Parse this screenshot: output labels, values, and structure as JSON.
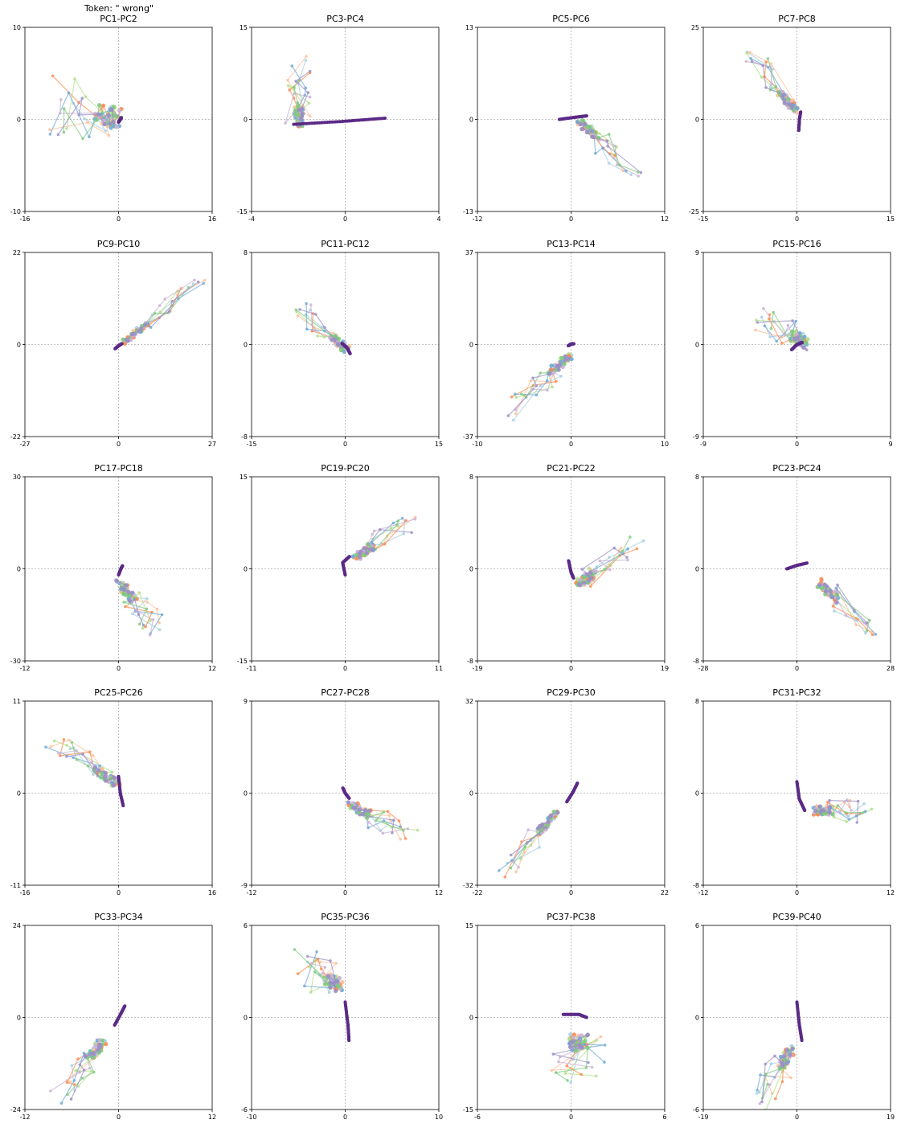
{
  "figure": {
    "token_label": "Token: \" wrong\""
  },
  "colors": {
    "series": [
      "#a6cee3",
      "#fdbf99",
      "#b2df8a",
      "#fb8a4f",
      "#6fa8d6",
      "#cab2d6",
      "#7fc97f",
      "#9a8fc5"
    ],
    "main_trajectory": "#5b2a86",
    "zero_line": "#b0b0b0"
  },
  "chart_data": [
    {
      "type": "line",
      "title": "PC1-PC2",
      "xlim": [
        -16,
        16
      ],
      "ylim": [
        -10,
        10
      ],
      "cluster": [
        0.3,
        0
      ],
      "ray": [
        -10,
        1.5
      ],
      "spread": [
        3.6,
        4.8
      ],
      "main_traj": [
        [
          0,
          -0.3
        ],
        [
          0.2,
          -0.1
        ],
        [
          0.5,
          0.2
        ]
      ]
    },
    {
      "type": "line",
      "title": "PC3-PC4",
      "xlim": [
        -4,
        4
      ],
      "ylim": [
        -15,
        15
      ],
      "cluster": [
        -2,
        -1
      ],
      "ray": [
        0,
        8
      ],
      "spread": [
        0.8,
        3.5
      ],
      "main_traj": [
        [
          -2.2,
          -0.8
        ],
        [
          0,
          -0.3
        ],
        [
          1.7,
          0.2
        ]
      ]
    },
    {
      "type": "line",
      "title": "PC5-PC6",
      "xlim": [
        -12,
        12
      ],
      "ylim": [
        -13,
        13
      ],
      "cluster": [
        1,
        0
      ],
      "ray": [
        6,
        -7
      ],
      "spread": [
        2.5,
        1.6
      ],
      "main_traj": [
        [
          -1.5,
          0
        ],
        [
          0.5,
          0.3
        ],
        [
          2,
          0.5
        ]
      ]
    },
    {
      "type": "line",
      "title": "PC7-PC8",
      "xlim": [
        -15,
        15
      ],
      "ylim": [
        -25,
        25
      ],
      "cluster": [
        0,
        2
      ],
      "ray": [
        -7,
        14
      ],
      "spread": [
        2.5,
        3
      ],
      "main_traj": [
        [
          0.3,
          -3
        ],
        [
          0.4,
          0
        ],
        [
          0.6,
          2
        ]
      ]
    },
    {
      "type": "line",
      "title": "PC9-PC10",
      "xlim": [
        -27,
        27
      ],
      "ylim": [
        -22,
        22
      ],
      "cluster": [
        1,
        0
      ],
      "ray": [
        20,
        14
      ],
      "spread": [
        3,
        2
      ],
      "main_traj": [
        [
          -1,
          -1
        ],
        [
          0,
          -0.3
        ],
        [
          1,
          0.2
        ]
      ]
    },
    {
      "type": "line",
      "title": "PC11-PC12",
      "xlim": [
        -15,
        15
      ],
      "ylim": [
        -8,
        8
      ],
      "cluster": [
        0.5,
        -0.5
      ],
      "ray": [
        -7,
        3
      ],
      "spread": [
        2.5,
        1.2
      ],
      "main_traj": [
        [
          -0.5,
          0.1
        ],
        [
          0.3,
          -0.3
        ],
        [
          0.8,
          -0.8
        ]
      ]
    },
    {
      "type": "line",
      "title": "PC13-PC14",
      "xlim": [
        -10,
        10
      ],
      "ylim": [
        -37,
        37
      ],
      "cluster": [
        0,
        -4
      ],
      "ray": [
        -6,
        -20
      ],
      "spread": [
        1.5,
        6
      ],
      "main_traj": [
        [
          -0.3,
          -0.5
        ],
        [
          0,
          0.2
        ],
        [
          0.3,
          0.3
        ]
      ]
    },
    {
      "type": "line",
      "title": "PC15-PC16",
      "xlim": [
        -9,
        9
      ],
      "ylim": [
        -9,
        9
      ],
      "cluster": [
        1,
        0
      ],
      "ray": [
        -4,
        2.5
      ],
      "spread": [
        1.5,
        2
      ],
      "main_traj": [
        [
          -0.5,
          -0.5
        ],
        [
          0,
          0
        ],
        [
          0.5,
          0.2
        ]
      ]
    },
    {
      "type": "line",
      "title": "PC17-PC18",
      "xlim": [
        -12,
        12
      ],
      "ylim": [
        -30,
        30
      ],
      "cluster": [
        0,
        -4
      ],
      "ray": [
        5,
        -16
      ],
      "spread": [
        2.5,
        5
      ],
      "main_traj": [
        [
          0,
          -2
        ],
        [
          0.3,
          0
        ],
        [
          0.5,
          1
        ]
      ]
    },
    {
      "type": "line",
      "title": "PC19-PC20",
      "xlim": [
        -11,
        11
      ],
      "ylim": [
        -15,
        15
      ],
      "cluster": [
        1,
        1.5
      ],
      "ray": [
        6,
        6
      ],
      "spread": [
        2,
        2
      ],
      "main_traj": [
        [
          0,
          -1
        ],
        [
          -0.3,
          1
        ],
        [
          0.5,
          2
        ]
      ]
    },
    {
      "type": "line",
      "title": "PC21-PC22",
      "xlim": [
        -19,
        19
      ],
      "ylim": [
        -8,
        8
      ],
      "cluster": [
        1,
        -1.5
      ],
      "ray": [
        10,
        3
      ],
      "spread": [
        3,
        1.5
      ],
      "main_traj": [
        [
          -0.5,
          0.7
        ],
        [
          0,
          -0.3
        ],
        [
          0.5,
          -0.8
        ]
      ]
    },
    {
      "type": "line",
      "title": "PC23-PC24",
      "xlim": [
        -28,
        28
      ],
      "ylim": [
        -8,
        8
      ],
      "cluster": [
        6,
        -1
      ],
      "ray": [
        16,
        -4.5
      ],
      "spread": [
        3,
        1.5
      ],
      "main_traj": [
        [
          -3,
          0
        ],
        [
          0,
          0.3
        ],
        [
          3,
          0.5
        ]
      ]
    },
    {
      "type": "line",
      "title": "PC25-PC26",
      "xlim": [
        -16,
        16
      ],
      "ylim": [
        -11,
        11
      ],
      "cluster": [
        0,
        1
      ],
      "ray": [
        -10,
        5
      ],
      "spread": [
        3,
        1.5
      ],
      "main_traj": [
        [
          0,
          2
        ],
        [
          0.3,
          0
        ],
        [
          0.8,
          -1.5
        ]
      ]
    },
    {
      "type": "line",
      "title": "PC27-PC28",
      "xlim": [
        -12,
        12
      ],
      "ylim": [
        -9,
        9
      ],
      "cluster": [
        0.5,
        -1
      ],
      "ray": [
        7,
        -3
      ],
      "spread": [
        2,
        1.5
      ],
      "main_traj": [
        [
          -0.3,
          0.5
        ],
        [
          0,
          0
        ],
        [
          0.5,
          -0.5
        ]
      ]
    },
    {
      "type": "line",
      "title": "PC29-PC30",
      "xlim": [
        -22,
        22
      ],
      "ylim": [
        -32,
        32
      ],
      "cluster": [
        -3,
        -6
      ],
      "ray": [
        -12,
        -20
      ],
      "spread": [
        3,
        4
      ],
      "main_traj": [
        [
          -1,
          -3
        ],
        [
          0.5,
          0.5
        ],
        [
          1.5,
          3.5
        ]
      ]
    },
    {
      "type": "line",
      "title": "PC31-PC32",
      "xlim": [
        -12,
        12
      ],
      "ylim": [
        -8,
        8
      ],
      "cluster": [
        2,
        -1.5
      ],
      "ray": [
        6,
        0
      ],
      "spread": [
        2,
        1.5
      ],
      "main_traj": [
        [
          0,
          1
        ],
        [
          0.3,
          -0.5
        ],
        [
          1,
          -1.5
        ]
      ]
    },
    {
      "type": "line",
      "title": "PC33-PC34",
      "xlim": [
        -12,
        12
      ],
      "ylim": [
        -24,
        24
      ],
      "cluster": [
        -2,
        -6
      ],
      "ray": [
        -5,
        -13
      ],
      "spread": [
        2.5,
        3
      ],
      "main_traj": [
        [
          -0.5,
          -2
        ],
        [
          0.3,
          1
        ],
        [
          0.8,
          3
        ]
      ]
    },
    {
      "type": "line",
      "title": "PC35-PC36",
      "xlim": [
        -10,
        10
      ],
      "ylim": [
        -6,
        6
      ],
      "cluster": [
        -0.5,
        2
      ],
      "ray": [
        -4,
        1.5
      ],
      "spread": [
        2,
        1.5
      ],
      "main_traj": [
        [
          0,
          1
        ],
        [
          0.3,
          -0.5
        ],
        [
          0.4,
          -1.5
        ]
      ]
    },
    {
      "type": "line",
      "title": "PC37-PC38",
      "xlim": [
        -6,
        6
      ],
      "ylim": [
        -15,
        15
      ],
      "cluster": [
        0.5,
        -3
      ],
      "ray": [
        0,
        -6
      ],
      "spread": [
        2.5,
        3
      ],
      "main_traj": [
        [
          -0.5,
          0.5
        ],
        [
          0.5,
          0.5
        ],
        [
          1,
          0
        ]
      ]
    },
    {
      "type": "line",
      "title": "PC39-PC40",
      "xlim": [
        -19,
        19
      ],
      "ylim": [
        -6,
        6
      ],
      "cluster": [
        -1,
        -2
      ],
      "ray": [
        -6,
        -3
      ],
      "spread": [
        3,
        1.5
      ],
      "main_traj": [
        [
          0,
          1
        ],
        [
          0.5,
          -0.5
        ],
        [
          1,
          -1.5
        ]
      ]
    }
  ]
}
